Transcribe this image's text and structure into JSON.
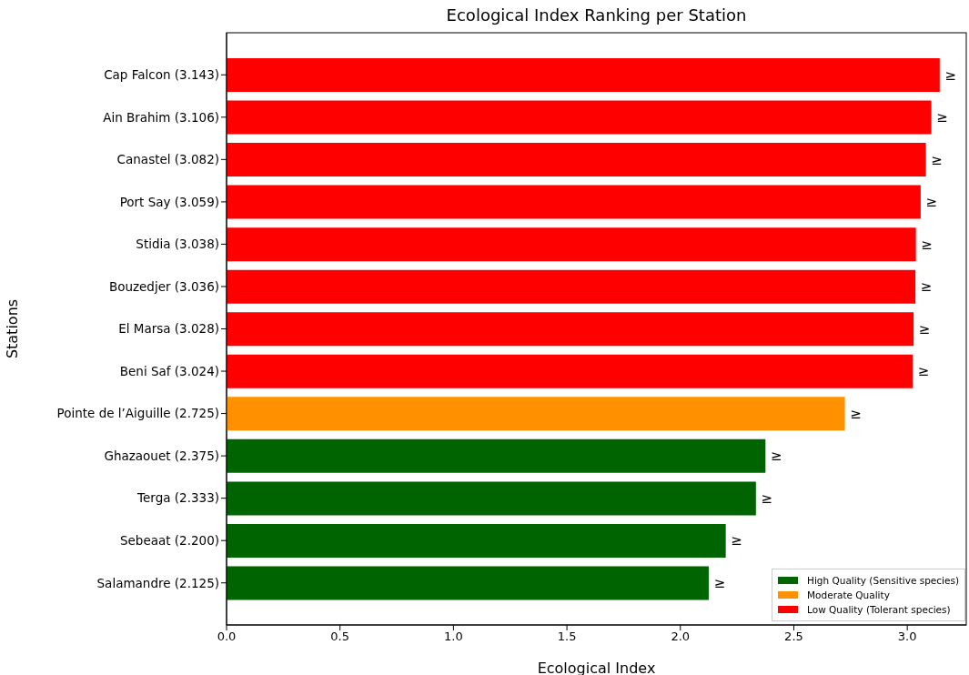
{
  "chart_data": {
    "type": "bar",
    "orientation": "horizontal",
    "stacked": true,
    "title": "Ecological Index Ranking per Station",
    "xlabel": "Ecological Index",
    "ylabel": "Stations",
    "categories": [
      "Cap Falcon (3.143)",
      "Ain Brahim (3.106)",
      "Canastel (3.082)",
      "Port Say (3.059)",
      "Stidia (3.038)",
      "Bouzedjer (3.036)",
      "El Marsa (3.028)",
      "Beni Saf (3.024)",
      "Pointe de l’Aiguille (2.725)",
      "Ghazaouet (2.375)",
      "Terga (2.333)",
      "Sebeaat (2.200)",
      "Salamandre (2.125)"
    ],
    "series": [
      {
        "name": "High Quality (Sensitive species)",
        "color": "#006400",
        "values": [
          null,
          null,
          null,
          null,
          null,
          null,
          null,
          null,
          null,
          2.375,
          2.333,
          2.2,
          2.125
        ],
        "value_labels": [
          null,
          null,
          null,
          null,
          null,
          null,
          null,
          null,
          null,
          "≥",
          "≥",
          "≥",
          "≥"
        ]
      },
      {
        "name": "Moderate Quality",
        "color": "#ff9000",
        "values": [
          null,
          null,
          null,
          null,
          null,
          null,
          null,
          null,
          2.725,
          null,
          null,
          null,
          null
        ],
        "value_labels": [
          null,
          null,
          null,
          null,
          null,
          null,
          null,
          null,
          "≥",
          null,
          null,
          null,
          null
        ]
      },
      {
        "name": "Low Quality (Tolerant species)",
        "color": "#ff0000",
        "values": [
          3.143,
          3.106,
          3.082,
          3.059,
          3.038,
          3.036,
          3.028,
          3.024,
          null,
          null,
          null,
          null,
          null
        ],
        "value_labels": [
          "≥",
          "≥",
          "≥",
          "≥",
          "≥",
          "≥",
          "≥",
          "≥",
          null,
          null,
          null,
          null,
          null
        ]
      }
    ],
    "xlim": [
      0,
      3.26
    ],
    "xticks": [
      {
        "value": 0,
        "label": "0.0"
      },
      {
        "value": 0.5,
        "label": "0.5"
      },
      {
        "value": 1,
        "label": "1.0"
      },
      {
        "value": 1.5,
        "label": "1.5"
      },
      {
        "value": 2,
        "label": "2.0"
      },
      {
        "value": 2.5,
        "label": "2.5"
      },
      {
        "value": 3,
        "label": "3.0"
      }
    ],
    "legend": "bottom right"
  }
}
